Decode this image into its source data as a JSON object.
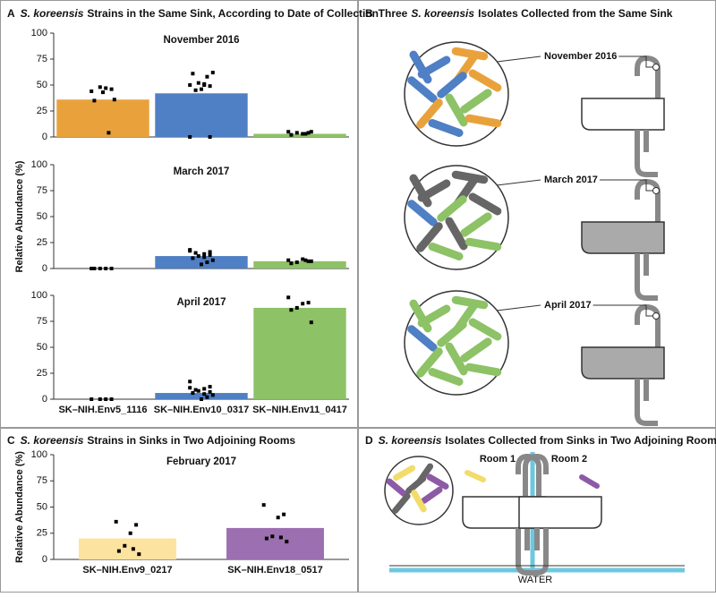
{
  "panels": [
    {
      "letter": "A",
      "title_parts": [
        {
          "text": "S. koreensis",
          "italic": true
        },
        {
          "text": "Strains in the Same Sink, According to Date of Collection"
        }
      ]
    },
    {
      "letter": "B",
      "title_parts": [
        {
          "text": "Three"
        },
        {
          "text": "S. koreensis",
          "italic": true
        },
        {
          "text": "Isolates Collected from the Same Sink"
        }
      ]
    },
    {
      "letter": "C",
      "title_parts": [
        {
          "text": "S. koreensis",
          "italic": true
        },
        {
          "text": "Strains in Sinks in Two Adjoining Rooms"
        }
      ]
    },
    {
      "letter": "D",
      "title_parts": [
        {
          "text": "S. koreensis",
          "italic": true
        },
        {
          "text": "Isolates Collected from Sinks in Two Adjoining Rooms"
        }
      ]
    }
  ],
  "chart_data": [
    {
      "type": "bar",
      "title": "November 2016",
      "categories": [
        null,
        null,
        null
      ],
      "values": [
        36,
        42,
        3
      ],
      "colors": [
        "#e9a23b",
        "#4f7fc4",
        "#8dc266"
      ],
      "points": [
        [
          44,
          46,
          47,
          48,
          35,
          36,
          4,
          43
        ],
        [
          50,
          49,
          51,
          52,
          61,
          62,
          58,
          46,
          45,
          0,
          0,
          50
        ],
        [
          5,
          4,
          3,
          4,
          2,
          5,
          3
        ]
      ],
      "ylim": [
        0,
        100
      ],
      "yticks": [
        0,
        25,
        50,
        75,
        100
      ]
    },
    {
      "type": "bar",
      "title": "March 2017",
      "ylabel": "Relative Abundance (%)",
      "categories": [
        null,
        null,
        null
      ],
      "values": [
        0,
        12,
        7
      ],
      "colors": [
        "#e9a23b",
        "#4f7fc4",
        "#8dc266"
      ],
      "points": [
        [
          0,
          0,
          0,
          0,
          0
        ],
        [
          18,
          16,
          14,
          12,
          10,
          8,
          6,
          4,
          15,
          17,
          13,
          11
        ],
        [
          8,
          7,
          9,
          6,
          5,
          7,
          8
        ]
      ],
      "ylim": [
        0,
        100
      ],
      "yticks": [
        0,
        25,
        50,
        75,
        100
      ]
    },
    {
      "type": "bar",
      "title": "April 2017",
      "categories": [
        "SK–NIH.Env5_1116",
        "SK–NIH.Env10_0317",
        "SK–NIH.Env11_0417"
      ],
      "values": [
        0,
        6,
        88
      ],
      "colors": [
        "#e9a23b",
        "#4f7fc4",
        "#8dc266"
      ],
      "points": [
        [
          0,
          0,
          0,
          0
        ],
        [
          17,
          12,
          10,
          8,
          6,
          4,
          2,
          0,
          9,
          11,
          7,
          5
        ],
        [
          98,
          93,
          92,
          88,
          86,
          74
        ]
      ],
      "ylim": [
        0,
        100
      ],
      "yticks": [
        0,
        25,
        50,
        75,
        100
      ]
    },
    {
      "type": "bar",
      "title": "February 2017",
      "ylabel": "Relative Abundance (%)",
      "categories": [
        "SK–NIH.Env9_0217",
        "SK–NIH.Env18_0517"
      ],
      "values": [
        20,
        30
      ],
      "colors": [
        "#fde3a0",
        "#9b6fb0"
      ],
      "points": [
        [
          36,
          33,
          25,
          13,
          8,
          5,
          10
        ],
        [
          52,
          43,
          40,
          22,
          20,
          17,
          21
        ]
      ],
      "ylim": [
        0,
        100
      ],
      "yticks": [
        0,
        25,
        50,
        75,
        100
      ]
    }
  ],
  "diagram_b": {
    "labels": [
      "November 2016",
      "March 2017",
      "April 2017"
    ]
  },
  "diagram_d": {
    "rooms": [
      "Room 1",
      "Room 2"
    ],
    "water": "WATER"
  }
}
